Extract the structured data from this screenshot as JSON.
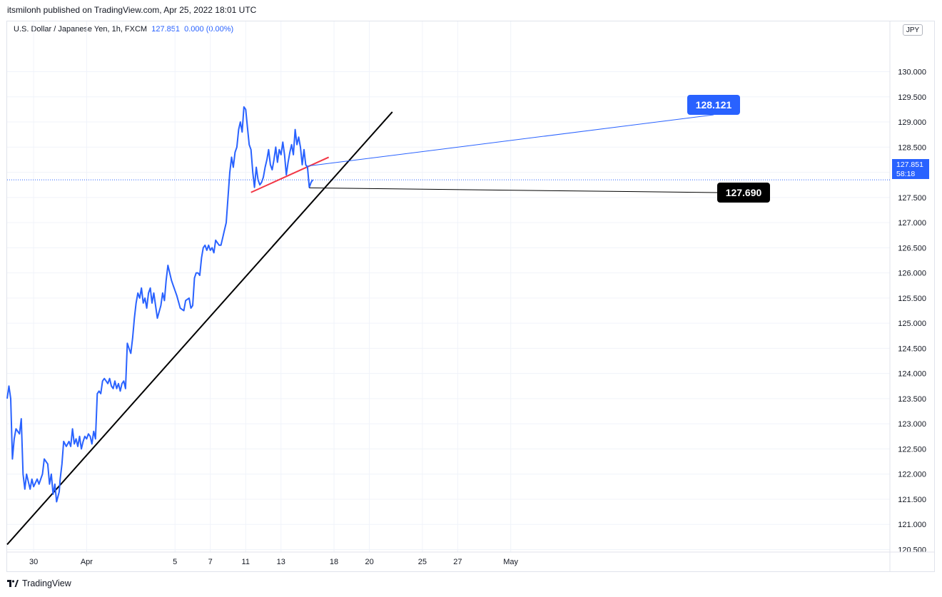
{
  "header": {
    "publisher": "itsmilonh published on TradingView.com, Apr 25, 2022 18:01 UTC"
  },
  "legend": {
    "symbol": "U.S. Dollar / Japanese Yen, 1h, FXCM",
    "last": "127.851",
    "change": "0.000 (0.00%)"
  },
  "currency_button": "JPY",
  "price_label": {
    "price": "127.851",
    "countdown": "58:18"
  },
  "footer": {
    "logo_text": "TradingView"
  },
  "colors": {
    "price_line": "#2962ff",
    "trendline": "#000000",
    "neckline": "#f23645",
    "callout_blue": "#2962ff",
    "callout_black": "#000000"
  },
  "chart_data": {
    "type": "line",
    "ylim": [
      120.45,
      131.0
    ],
    "y_ticks": [
      "130.000",
      "129.500",
      "129.000",
      "128.500",
      "128.000",
      "127.500",
      "127.000",
      "126.500",
      "126.000",
      "125.500",
      "125.000",
      "124.500",
      "124.000",
      "123.500",
      "123.000",
      "122.500",
      "122.000",
      "121.500",
      "121.000",
      "120.500"
    ],
    "x_ticks": [
      {
        "label": "30",
        "t": 1.5
      },
      {
        "label": "Apr",
        "t": 4.5
      },
      {
        "label": "5",
        "t": 9.5
      },
      {
        "label": "7",
        "t": 11.5
      },
      {
        "label": "11",
        "t": 13.5
      },
      {
        "label": "13",
        "t": 15.5
      },
      {
        "label": "18",
        "t": 18.5
      },
      {
        "label": "20",
        "t": 20.5
      },
      {
        "label": "25",
        "t": 23.5
      },
      {
        "label": "27",
        "t": 25.5
      },
      {
        "label": "May",
        "t": 28.5
      }
    ],
    "x_axis_note": "t = trading-day index on the chart's session axis",
    "series": [
      {
        "points": [
          [
            0,
            123.5
          ],
          [
            0.1,
            123.75
          ],
          [
            0.2,
            123.5
          ],
          [
            0.3,
            122.3
          ],
          [
            0.4,
            122.7
          ],
          [
            0.5,
            122.9
          ],
          [
            0.7,
            122.8
          ],
          [
            0.8,
            123.1
          ],
          [
            0.9,
            122.0
          ],
          [
            1.0,
            121.7
          ],
          [
            1.1,
            122.0
          ],
          [
            1.3,
            121.7
          ],
          [
            1.4,
            121.9
          ],
          [
            1.5,
            121.75
          ],
          [
            1.7,
            121.9
          ],
          [
            1.8,
            121.8
          ],
          [
            2.0,
            122.0
          ],
          [
            2.1,
            122.3
          ],
          [
            2.3,
            122.2
          ],
          [
            2.4,
            121.8
          ],
          [
            2.5,
            122.0
          ],
          [
            2.6,
            121.6
          ],
          [
            2.7,
            121.8
          ],
          [
            2.8,
            121.45
          ],
          [
            2.95,
            121.65
          ],
          [
            3.0,
            121.9
          ],
          [
            3.1,
            122.2
          ],
          [
            3.2,
            122.65
          ],
          [
            3.35,
            122.55
          ],
          [
            3.5,
            122.65
          ],
          [
            3.6,
            122.55
          ],
          [
            3.7,
            122.9
          ],
          [
            3.8,
            122.6
          ],
          [
            3.9,
            122.7
          ],
          [
            4.0,
            122.55
          ],
          [
            4.1,
            122.75
          ],
          [
            4.2,
            122.5
          ],
          [
            4.3,
            122.65
          ],
          [
            4.4,
            122.75
          ],
          [
            4.5,
            122.7
          ],
          [
            4.6,
            122.8
          ],
          [
            4.7,
            122.75
          ],
          [
            4.8,
            122.6
          ],
          [
            4.9,
            122.85
          ],
          [
            5.0,
            122.7
          ],
          [
            5.1,
            123.6
          ],
          [
            5.2,
            123.65
          ],
          [
            5.3,
            123.6
          ],
          [
            5.4,
            123.85
          ],
          [
            5.5,
            123.9
          ],
          [
            5.6,
            123.85
          ],
          [
            5.7,
            123.8
          ],
          [
            5.8,
            123.9
          ],
          [
            5.9,
            123.75
          ],
          [
            6.0,
            123.7
          ],
          [
            6.1,
            123.85
          ],
          [
            6.2,
            123.7
          ],
          [
            6.3,
            123.8
          ],
          [
            6.4,
            123.65
          ],
          [
            6.5,
            123.8
          ],
          [
            6.6,
            123.85
          ],
          [
            6.7,
            123.7
          ],
          [
            6.8,
            124.6
          ],
          [
            6.9,
            124.5
          ],
          [
            7.0,
            124.4
          ],
          [
            7.1,
            124.7
          ],
          [
            7.2,
            125.1
          ],
          [
            7.3,
            125.4
          ],
          [
            7.4,
            125.6
          ],
          [
            7.5,
            125.5
          ],
          [
            7.6,
            125.7
          ],
          [
            7.7,
            125.4
          ],
          [
            7.8,
            125.5
          ],
          [
            7.9,
            125.3
          ],
          [
            8.0,
            125.6
          ],
          [
            8.1,
            125.7
          ],
          [
            8.2,
            125.4
          ],
          [
            8.3,
            125.6
          ],
          [
            8.5,
            125.1
          ],
          [
            8.7,
            125.35
          ],
          [
            8.8,
            125.6
          ],
          [
            8.9,
            125.45
          ],
          [
            9.0,
            125.85
          ],
          [
            9.1,
            126.15
          ],
          [
            9.2,
            126.0
          ],
          [
            9.3,
            125.85
          ],
          [
            9.4,
            125.75
          ],
          [
            9.6,
            125.55
          ],
          [
            9.8,
            125.3
          ],
          [
            10.0,
            125.25
          ],
          [
            10.1,
            125.45
          ],
          [
            10.3,
            125.5
          ],
          [
            10.4,
            125.3
          ],
          [
            10.5,
            125.35
          ],
          [
            10.6,
            125.9
          ],
          [
            10.7,
            126.0
          ],
          [
            10.8,
            126.0
          ],
          [
            10.9,
            125.95
          ],
          [
            11.0,
            126.3
          ],
          [
            11.1,
            126.5
          ],
          [
            11.2,
            126.55
          ],
          [
            11.3,
            126.45
          ],
          [
            11.4,
            126.55
          ],
          [
            11.5,
            126.45
          ],
          [
            11.6,
            126.5
          ],
          [
            11.7,
            126.4
          ],
          [
            11.8,
            126.65
          ],
          [
            11.9,
            126.6
          ],
          [
            12.0,
            126.55
          ],
          [
            12.1,
            126.55
          ],
          [
            12.2,
            126.7
          ],
          [
            12.3,
            126.85
          ],
          [
            12.4,
            127.0
          ],
          [
            12.5,
            127.5
          ],
          [
            12.6,
            128.0
          ],
          [
            12.7,
            128.3
          ],
          [
            12.8,
            128.1
          ],
          [
            12.9,
            128.4
          ],
          [
            13.0,
            128.5
          ],
          [
            13.1,
            128.85
          ],
          [
            13.2,
            129.0
          ],
          [
            13.3,
            128.8
          ],
          [
            13.4,
            129.3
          ],
          [
            13.5,
            129.25
          ],
          [
            13.6,
            128.9
          ],
          [
            13.7,
            128.55
          ],
          [
            13.8,
            128.45
          ],
          [
            13.9,
            128.0
          ],
          [
            14.0,
            127.7
          ],
          [
            14.1,
            128.1
          ],
          [
            14.2,
            127.85
          ],
          [
            14.3,
            127.75
          ],
          [
            14.4,
            127.8
          ],
          [
            14.5,
            127.9
          ],
          [
            14.6,
            128.1
          ],
          [
            14.7,
            128.25
          ],
          [
            14.8,
            128.45
          ],
          [
            14.9,
            128.15
          ],
          [
            15.0,
            128.05
          ],
          [
            15.1,
            128.25
          ],
          [
            15.2,
            128.5
          ],
          [
            15.3,
            128.2
          ],
          [
            15.4,
            128.45
          ],
          [
            15.5,
            128.35
          ],
          [
            15.6,
            128.6
          ],
          [
            15.7,
            128.35
          ],
          [
            15.8,
            127.95
          ],
          [
            15.9,
            128.2
          ],
          [
            16.0,
            128.4
          ],
          [
            16.1,
            128.55
          ],
          [
            16.2,
            128.35
          ],
          [
            16.3,
            128.85
          ],
          [
            16.4,
            128.55
          ],
          [
            16.5,
            128.7
          ],
          [
            16.6,
            128.5
          ],
          [
            16.7,
            128.15
          ],
          [
            16.8,
            128.45
          ],
          [
            16.9,
            128.15
          ],
          [
            17.0,
            128.1
          ],
          [
            17.1,
            127.7
          ],
          [
            17.2,
            127.8
          ],
          [
            17.3,
            127.851
          ]
        ]
      }
    ],
    "annotations": [
      {
        "type": "trendline",
        "color": "#000000",
        "from": [
          0,
          120.6
        ],
        "to": [
          21.8,
          129.2
        ]
      },
      {
        "type": "trendline",
        "color": "#f23645",
        "from": [
          13.8,
          127.6
        ],
        "to": [
          18.2,
          128.3
        ]
      },
      {
        "type": "callout",
        "text": "128.121",
        "style": "blue",
        "anchor": [
          16.95,
          128.121
        ]
      },
      {
        "type": "callout",
        "text": "127.690",
        "style": "black",
        "anchor": [
          17.1,
          127.69
        ]
      }
    ]
  }
}
